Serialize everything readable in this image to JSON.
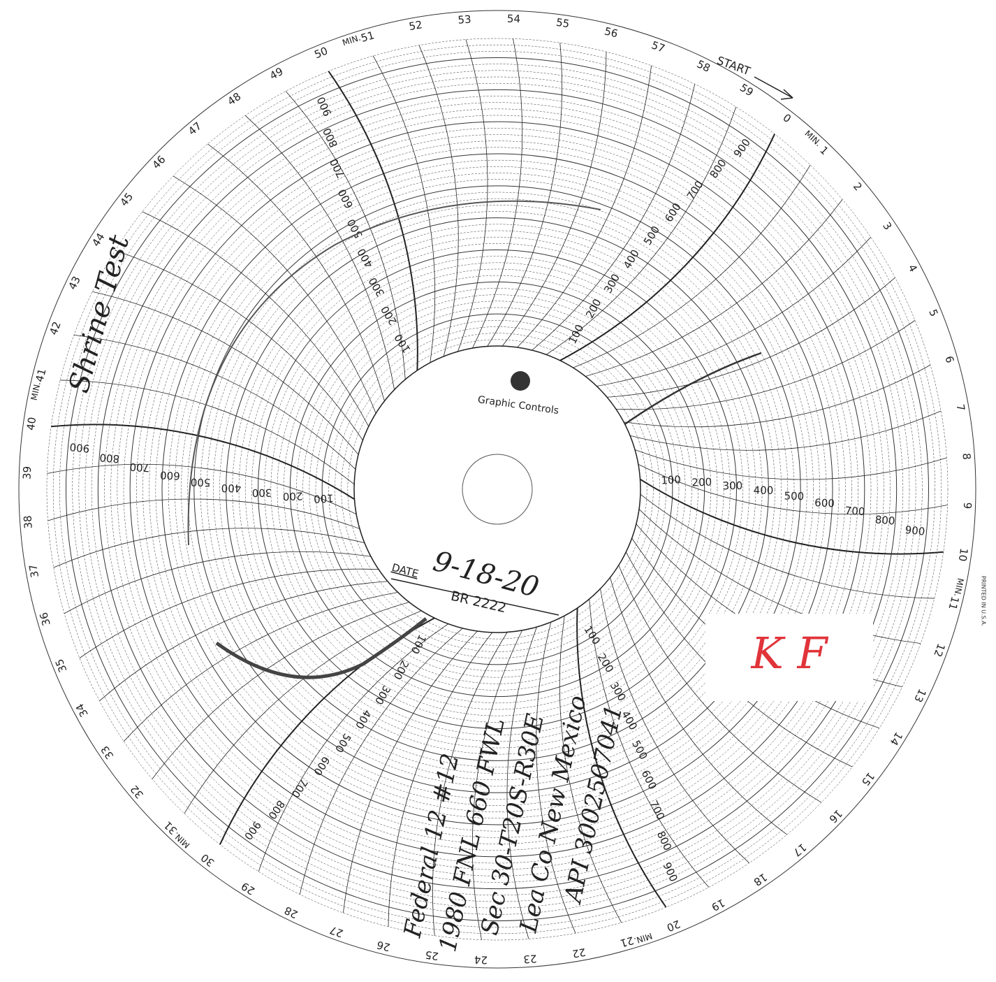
{
  "dial": {
    "start": "START",
    "min_label": "MIN.",
    "minute_labels": [
      "0",
      "1",
      "2",
      "3",
      "4",
      "5",
      "6",
      "7",
      "8",
      "9",
      "10",
      "11",
      "12",
      "13",
      "14",
      "15",
      "16",
      "17",
      "18",
      "19",
      "20",
      "21",
      "22",
      "23",
      "24",
      "25",
      "26",
      "27",
      "28",
      "29",
      "30",
      "31",
      "32",
      "33",
      "34",
      "35",
      "36",
      "37",
      "38",
      "39",
      "40",
      "41",
      "42",
      "43",
      "44",
      "45",
      "46",
      "47",
      "48",
      "49",
      "50",
      "51",
      "52",
      "53",
      "54",
      "55",
      "56",
      "57",
      "58",
      "59"
    ],
    "scale_labels": [
      "100",
      "200",
      "300",
      "400",
      "500",
      "600",
      "700",
      "800",
      "900"
    ],
    "printed": "PRINTED IN U.S.A."
  },
  "center": {
    "brand": "Graphic Controls",
    "date_label": "DATE",
    "date": "9-18-20",
    "chart_no": "BR 2222"
  },
  "annotations": {
    "side_note": "Shrine Test",
    "notes": [
      "Federal 12 #12",
      "1980 FNL 660 FWL",
      "Sec 30-T20S-R30E",
      "Lea Co New Mexico",
      "API 3002507041"
    ],
    "initials": "K F"
  }
}
